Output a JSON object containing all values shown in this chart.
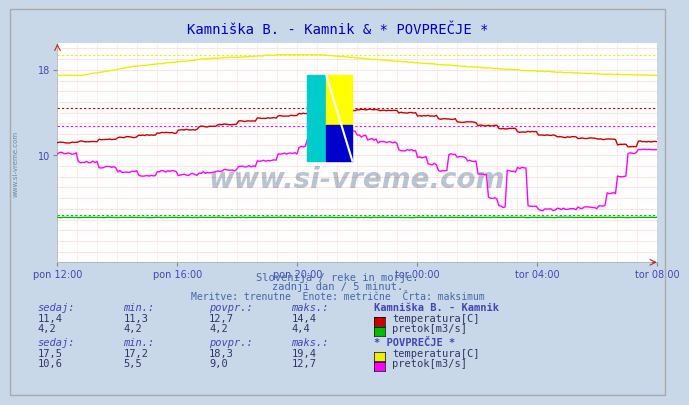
{
  "title": "Kamniška B. - Kamnik & * POVPREČJE *",
  "title_color": "#0000cc",
  "bg_color": "#c8d8e8",
  "plot_bg_color": "#ffffff",
  "grid_color_h": "#ffcccc",
  "grid_color_v": "#ddcccc",
  "xlabel_color": "#4444bb",
  "ylabel_color": "#4444bb",
  "xtick_labels": [
    "pon 12:00",
    "pon 16:00",
    "pon 20:00",
    "tor 00:00",
    "tor 04:00",
    "tor 08:00"
  ],
  "xtick_positions": [
    0,
    48,
    96,
    144,
    192,
    240
  ],
  "total_points": 289,
  "subtitle1": "Slovenija / reke in morje.",
  "subtitle2": "zadnji dan / 5 minut.",
  "subtitle3": "Meritve: trenutne  Enote: metrične  Črta: maksimum",
  "subtitle_color": "#4466aa",
  "watermark": "www.si-vreme.com",
  "watermark_color": "#1a3a6a",
  "legend1_title": "Kamniška B. - Kamnik",
  "legend2_title": "* POVPREČJE *",
  "table_header_color": "#4444bb",
  "table_value_color": "#333366",
  "temp1_color": "#cc0000",
  "flow1_color": "#00bb00",
  "temp2_color": "#eeee00",
  "flow2_color": "#ff00ff",
  "hline_temp1_max": 14.4,
  "hline_flow1_max": 4.4,
  "hline_temp2_max": 19.4,
  "hline_flow2_max": 12.7,
  "ymin": 0,
  "ymax": 20.5,
  "table1_sedaj": [
    "11,4",
    "4,2"
  ],
  "table1_min": [
    "11,3",
    "4,2"
  ],
  "table1_povpr": [
    "12,7",
    "4,2"
  ],
  "table1_maks": [
    "14,4",
    "4,4"
  ],
  "table1_labels": [
    "temperatura[C]",
    "pretok[m3/s]"
  ],
  "table1_colors": [
    "#cc0000",
    "#00bb00"
  ],
  "table2_sedaj": [
    "17,5",
    "10,6"
  ],
  "table2_min": [
    "17,2",
    "5,5"
  ],
  "table2_povpr": [
    "18,3",
    "9,0"
  ],
  "table2_maks": [
    "19,4",
    "12,7"
  ],
  "table2_labels": [
    "temperatura[C]",
    "pretok[m3/s]"
  ],
  "table2_colors": [
    "#eeee00",
    "#ff00ff"
  ]
}
